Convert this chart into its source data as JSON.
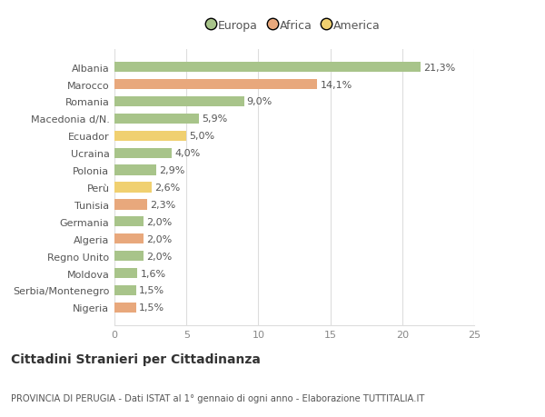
{
  "categories": [
    "Nigeria",
    "Serbia/Montenegro",
    "Moldova",
    "Regno Unito",
    "Algeria",
    "Germania",
    "Tunisia",
    "Perù",
    "Polonia",
    "Ucraina",
    "Ecuador",
    "Macedonia d/N.",
    "Romania",
    "Marocco",
    "Albania"
  ],
  "values": [
    1.5,
    1.5,
    1.6,
    2.0,
    2.0,
    2.0,
    2.3,
    2.6,
    2.9,
    4.0,
    5.0,
    5.9,
    9.0,
    14.1,
    21.3
  ],
  "labels": [
    "1,5%",
    "1,5%",
    "1,6%",
    "2,0%",
    "2,0%",
    "2,0%",
    "2,3%",
    "2,6%",
    "2,9%",
    "4,0%",
    "5,0%",
    "5,9%",
    "9,0%",
    "14,1%",
    "21,3%"
  ],
  "colors": [
    "#e8a87c",
    "#a8c48a",
    "#a8c48a",
    "#a8c48a",
    "#e8a87c",
    "#a8c48a",
    "#e8a87c",
    "#f0d070",
    "#a8c48a",
    "#a8c48a",
    "#f0d070",
    "#a8c48a",
    "#a8c48a",
    "#e8a87c",
    "#a8c48a"
  ],
  "legend_labels": [
    "Europa",
    "Africa",
    "America"
  ],
  "legend_colors": [
    "#a8c48a",
    "#e8a87c",
    "#f0d070"
  ],
  "title": "Cittadini Stranieri per Cittadinanza",
  "subtitle": "PROVINCIA DI PERUGIA - Dati ISTAT al 1° gennaio di ogni anno - Elaborazione TUTTITALIA.IT",
  "xlim": [
    0,
    25
  ],
  "xticks": [
    0,
    5,
    10,
    15,
    20,
    25
  ],
  "bg_color": "#ffffff",
  "grid_color": "#dddddd",
  "bar_height": 0.6,
  "label_fontsize": 8.0,
  "tick_fontsize": 8.0,
  "label_color": "#555555"
}
